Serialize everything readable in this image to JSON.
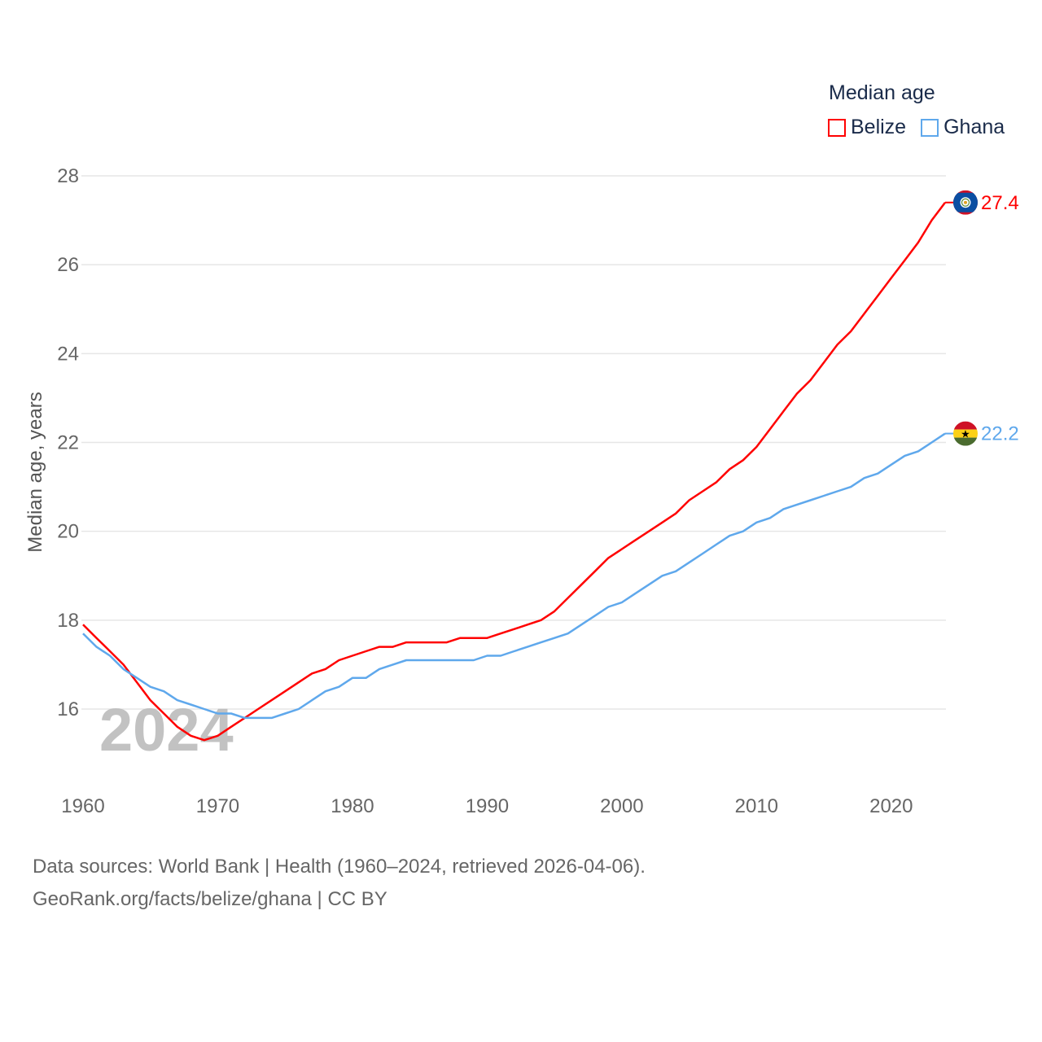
{
  "chart_data": {
    "type": "line",
    "title": "Median age",
    "xlabel": "",
    "ylabel": "Median age, years",
    "xlim": [
      1960,
      2024
    ],
    "ylim": [
      15,
      28
    ],
    "x_ticks": [
      1960,
      1970,
      1980,
      1990,
      2000,
      2010,
      2020
    ],
    "y_ticks": [
      16,
      18,
      20,
      22,
      24,
      26,
      28
    ],
    "grid": true,
    "legend_placement": "top-right",
    "watermark": "2024",
    "x": [
      1960,
      1961,
      1962,
      1963,
      1964,
      1965,
      1966,
      1967,
      1968,
      1969,
      1970,
      1971,
      1972,
      1973,
      1974,
      1975,
      1976,
      1977,
      1978,
      1979,
      1980,
      1981,
      1982,
      1983,
      1984,
      1985,
      1986,
      1987,
      1988,
      1989,
      1990,
      1991,
      1992,
      1993,
      1994,
      1995,
      1996,
      1997,
      1998,
      1999,
      2000,
      2001,
      2002,
      2003,
      2004,
      2005,
      2006,
      2007,
      2008,
      2009,
      2010,
      2011,
      2012,
      2013,
      2014,
      2015,
      2016,
      2017,
      2018,
      2019,
      2020,
      2021,
      2022,
      2023,
      2024
    ],
    "series": [
      {
        "name": "Belize",
        "color": "#ff0000",
        "end_label": "27.4",
        "flag": "belize-flag",
        "values": [
          17.9,
          17.6,
          17.3,
          17.0,
          16.6,
          16.2,
          15.9,
          15.6,
          15.4,
          15.3,
          15.4,
          15.6,
          15.8,
          16.0,
          16.2,
          16.4,
          16.6,
          16.8,
          16.9,
          17.1,
          17.2,
          17.3,
          17.4,
          17.4,
          17.5,
          17.5,
          17.5,
          17.5,
          17.6,
          17.6,
          17.6,
          17.7,
          17.8,
          17.9,
          18.0,
          18.2,
          18.5,
          18.8,
          19.1,
          19.4,
          19.6,
          19.8,
          20.0,
          20.2,
          20.4,
          20.7,
          20.9,
          21.1,
          21.4,
          21.6,
          21.9,
          22.3,
          22.7,
          23.1,
          23.4,
          23.8,
          24.2,
          24.5,
          24.9,
          25.3,
          25.7,
          26.1,
          26.5,
          27.0,
          27.4
        ]
      },
      {
        "name": "Ghana",
        "color": "#5fa8ec",
        "end_label": "22.2",
        "flag": "ghana-flag",
        "values": [
          17.7,
          17.4,
          17.2,
          16.9,
          16.7,
          16.5,
          16.4,
          16.2,
          16.1,
          16.0,
          15.9,
          15.9,
          15.8,
          15.8,
          15.8,
          15.9,
          16.0,
          16.2,
          16.4,
          16.5,
          16.7,
          16.7,
          16.9,
          17.0,
          17.1,
          17.1,
          17.1,
          17.1,
          17.1,
          17.1,
          17.2,
          17.2,
          17.3,
          17.4,
          17.5,
          17.6,
          17.7,
          17.9,
          18.1,
          18.3,
          18.4,
          18.6,
          18.8,
          19.0,
          19.1,
          19.3,
          19.5,
          19.7,
          19.9,
          20.0,
          20.2,
          20.3,
          20.5,
          20.6,
          20.7,
          20.8,
          20.9,
          21.0,
          21.2,
          21.3,
          21.5,
          21.7,
          21.8,
          22.0,
          22.2
        ]
      }
    ]
  },
  "footer": {
    "line1": "Data sources: World Bank | Health (1960–2024, retrieved 2026-04-06).",
    "line2": "GeoRank.org/facts/belize/ghana | CC BY"
  }
}
